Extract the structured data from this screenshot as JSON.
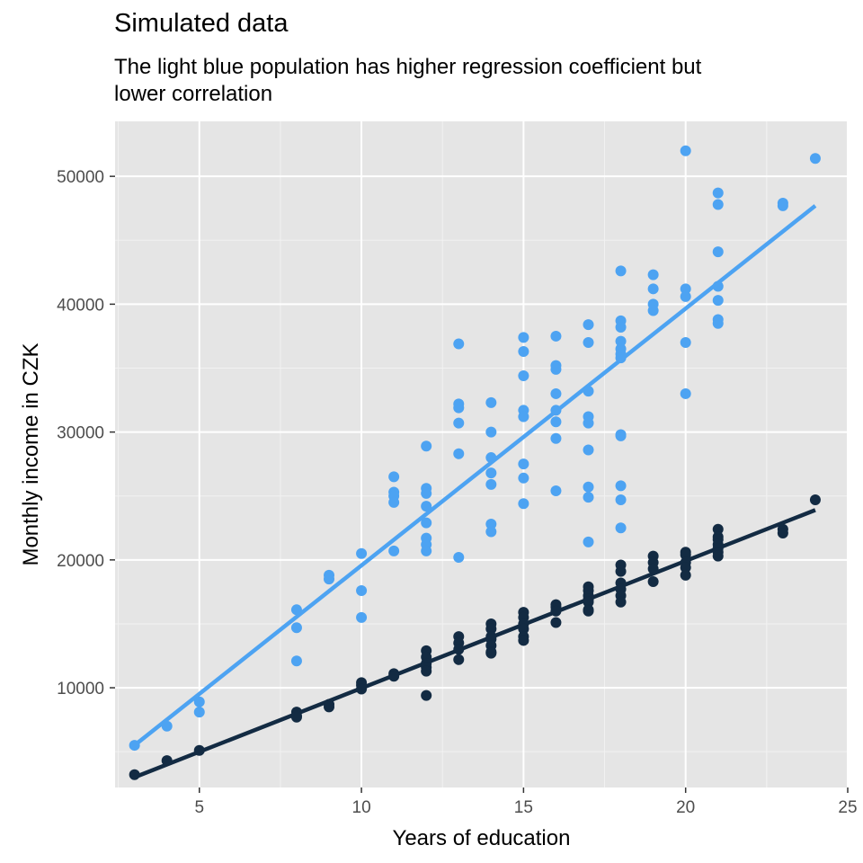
{
  "chart_data": {
    "type": "scatter",
    "title": "Simulated data",
    "subtitle": "The light blue population has higher regression coefficient but\n lower correlation",
    "xlabel": "Years of education",
    "ylabel": "Monthly income in CZK",
    "xlim": [
      2.4,
      25
    ],
    "ylim": [
      2200,
      54300
    ],
    "xticks": [
      5,
      10,
      15,
      20,
      25
    ],
    "yticks": [
      10000,
      20000,
      30000,
      40000,
      50000
    ],
    "background": "#e5e5e5",
    "grid": true,
    "series": [
      {
        "color": "#4da3f2",
        "points": [
          [
            3,
            5500
          ],
          [
            4,
            7000
          ],
          [
            5,
            8900
          ],
          [
            5,
            8100
          ],
          [
            8,
            16100
          ],
          [
            8,
            14700
          ],
          [
            8,
            12100
          ],
          [
            9,
            18800
          ],
          [
            9,
            18500
          ],
          [
            10,
            20500
          ],
          [
            10,
            17600
          ],
          [
            10,
            15500
          ],
          [
            11,
            26500
          ],
          [
            11,
            25300
          ],
          [
            11,
            25000
          ],
          [
            11,
            24500
          ],
          [
            11,
            20700
          ],
          [
            12,
            28900
          ],
          [
            12,
            25600
          ],
          [
            12,
            25200
          ],
          [
            12,
            24200
          ],
          [
            12,
            22900
          ],
          [
            12,
            21700
          ],
          [
            12,
            21200
          ],
          [
            12,
            20700
          ],
          [
            13,
            36900
          ],
          [
            13,
            32200
          ],
          [
            13,
            31900
          ],
          [
            13,
            30700
          ],
          [
            13,
            28300
          ],
          [
            13,
            20200
          ],
          [
            14,
            32300
          ],
          [
            14,
            30000
          ],
          [
            14,
            28000
          ],
          [
            14,
            26800
          ],
          [
            14,
            25900
          ],
          [
            14,
            22800
          ],
          [
            14,
            22200
          ],
          [
            15,
            37400
          ],
          [
            15,
            36300
          ],
          [
            15,
            34400
          ],
          [
            15,
            31700
          ],
          [
            15,
            31200
          ],
          [
            15,
            27500
          ],
          [
            15,
            26400
          ],
          [
            15,
            24400
          ],
          [
            16,
            37500
          ],
          [
            16,
            35200
          ],
          [
            16,
            34900
          ],
          [
            16,
            33000
          ],
          [
            16,
            31700
          ],
          [
            16,
            30800
          ],
          [
            16,
            29500
          ],
          [
            16,
            25400
          ],
          [
            17,
            38400
          ],
          [
            17,
            37000
          ],
          [
            17,
            33200
          ],
          [
            17,
            31200
          ],
          [
            17,
            30700
          ],
          [
            17,
            28600
          ],
          [
            17,
            25700
          ],
          [
            17,
            24900
          ],
          [
            17,
            21400
          ],
          [
            18,
            42600
          ],
          [
            18,
            38700
          ],
          [
            18,
            38200
          ],
          [
            18,
            37100
          ],
          [
            18,
            36500
          ],
          [
            18,
            36100
          ],
          [
            18,
            35800
          ],
          [
            18,
            29800
          ],
          [
            18,
            29700
          ],
          [
            18,
            25800
          ],
          [
            18,
            24700
          ],
          [
            18,
            22500
          ],
          [
            19,
            42300
          ],
          [
            19,
            41200
          ],
          [
            19,
            40000
          ],
          [
            19,
            39500
          ],
          [
            20,
            52000
          ],
          [
            20,
            41200
          ],
          [
            20,
            40600
          ],
          [
            20,
            37000
          ],
          [
            20,
            33000
          ],
          [
            21,
            48700
          ],
          [
            21,
            47800
          ],
          [
            21,
            44100
          ],
          [
            21,
            41400
          ],
          [
            21,
            40300
          ],
          [
            21,
            38800
          ],
          [
            21,
            38500
          ],
          [
            23,
            47900
          ],
          [
            23,
            47700
          ],
          [
            24,
            51400
          ]
        ],
        "fit": [
          [
            3,
            5500
          ],
          [
            24,
            47700
          ]
        ]
      },
      {
        "color": "#132b43",
        "points": [
          [
            3,
            3200
          ],
          [
            4,
            4300
          ],
          [
            5,
            5100
          ],
          [
            8,
            8100
          ],
          [
            8,
            7800
          ],
          [
            8,
            7700
          ],
          [
            9,
            8700
          ],
          [
            9,
            8500
          ],
          [
            10,
            10400
          ],
          [
            10,
            10200
          ],
          [
            10,
            9900
          ],
          [
            11,
            11100
          ],
          [
            11,
            10900
          ],
          [
            12,
            12900
          ],
          [
            12,
            12400
          ],
          [
            12,
            11900
          ],
          [
            12,
            11600
          ],
          [
            12,
            11300
          ],
          [
            12,
            9400
          ],
          [
            13,
            14000
          ],
          [
            13,
            13500
          ],
          [
            13,
            13000
          ],
          [
            13,
            12200
          ],
          [
            14,
            15000
          ],
          [
            14,
            14600
          ],
          [
            14,
            14000
          ],
          [
            14,
            13800
          ],
          [
            14,
            13300
          ],
          [
            14,
            12800
          ],
          [
            14,
            12700
          ],
          [
            15,
            15900
          ],
          [
            15,
            15500
          ],
          [
            15,
            15000
          ],
          [
            15,
            14600
          ],
          [
            15,
            14000
          ],
          [
            15,
            13700
          ],
          [
            16,
            16500
          ],
          [
            16,
            16300
          ],
          [
            16,
            16000
          ],
          [
            16,
            15100
          ],
          [
            17,
            17900
          ],
          [
            17,
            17600
          ],
          [
            17,
            17200
          ],
          [
            17,
            16900
          ],
          [
            17,
            16700
          ],
          [
            17,
            16100
          ],
          [
            17,
            16000
          ],
          [
            18,
            19600
          ],
          [
            18,
            19100
          ],
          [
            18,
            18200
          ],
          [
            18,
            17700
          ],
          [
            18,
            17200
          ],
          [
            18,
            16700
          ],
          [
            19,
            20300
          ],
          [
            19,
            19800
          ],
          [
            19,
            19300
          ],
          [
            19,
            18300
          ],
          [
            20,
            20600
          ],
          [
            20,
            20400
          ],
          [
            20,
            19800
          ],
          [
            20,
            19400
          ],
          [
            20,
            18800
          ],
          [
            21,
            22400
          ],
          [
            21,
            21800
          ],
          [
            21,
            21600
          ],
          [
            21,
            21200
          ],
          [
            21,
            20900
          ],
          [
            21,
            20600
          ],
          [
            21,
            20300
          ],
          [
            23,
            22400
          ],
          [
            23,
            22100
          ],
          [
            24,
            24700
          ]
        ],
        "fit": [
          [
            3,
            3000
          ],
          [
            24,
            23900
          ]
        ]
      }
    ]
  }
}
